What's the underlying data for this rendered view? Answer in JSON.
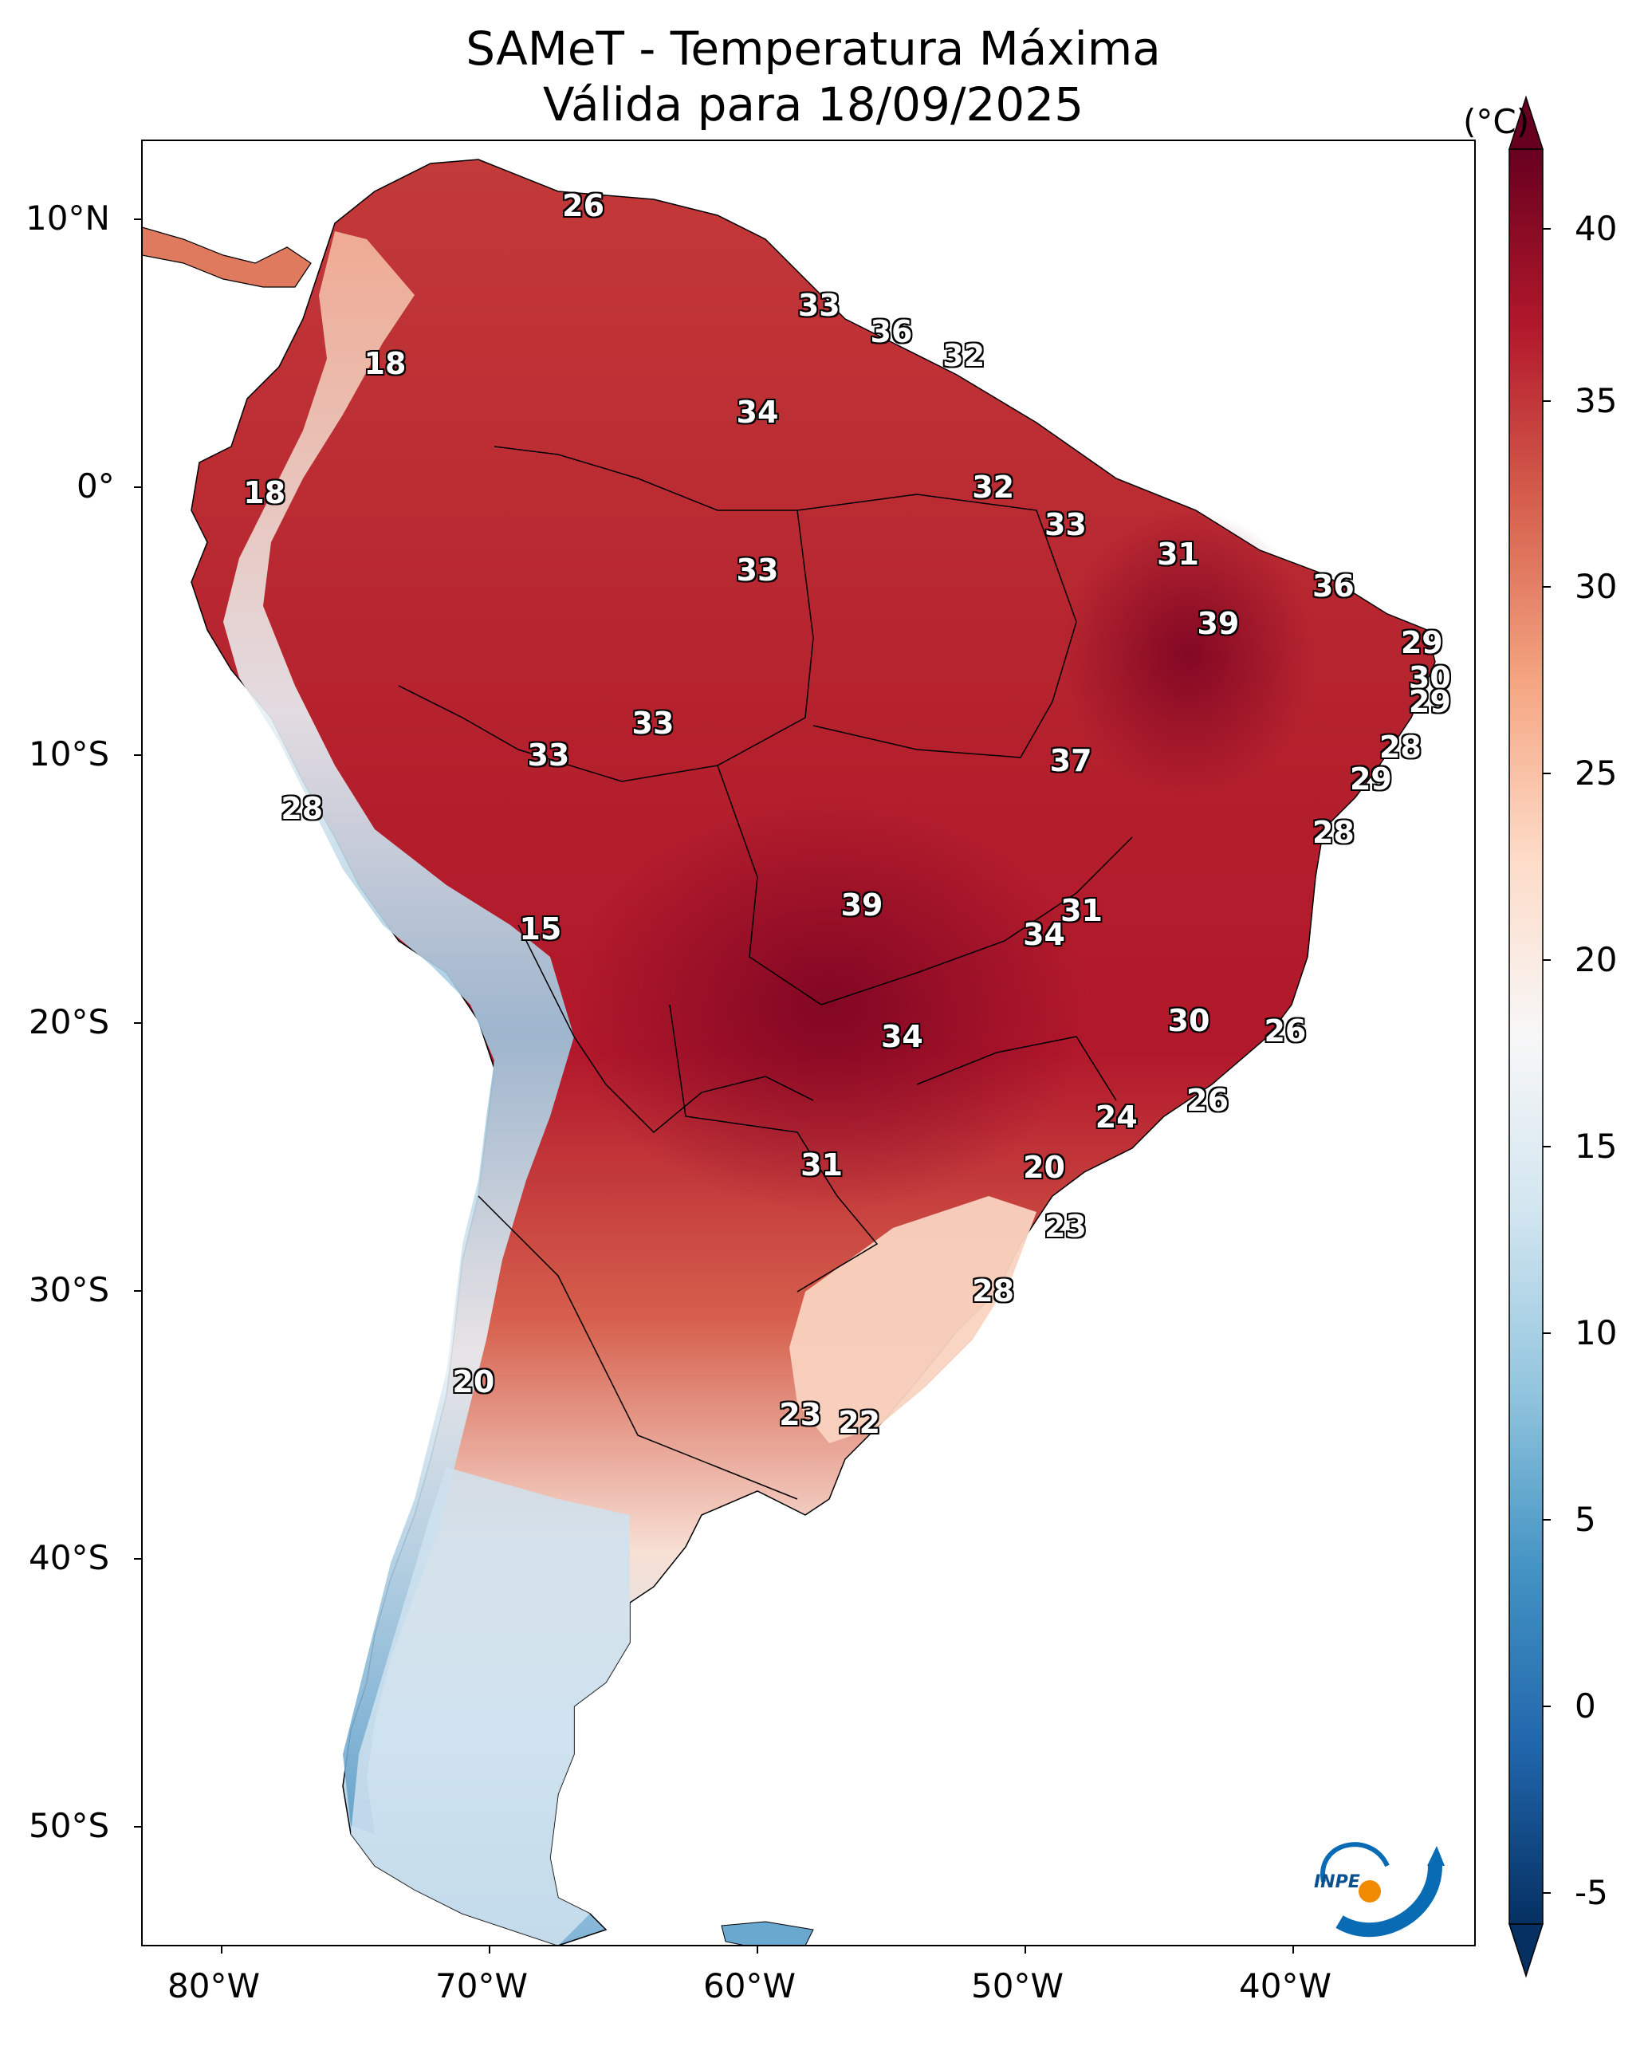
{
  "title": "SAMeT - Temperatura Máxima",
  "subtitle": "Válida para 18/09/2025",
  "colorbar": {
    "unit": "(°C)",
    "ticks": [
      "40",
      "35",
      "30",
      "25",
      "20",
      "15",
      "10",
      "5",
      "0",
      "-5"
    ],
    "range": [
      -5,
      40
    ],
    "colormap": "RdBu_r",
    "colors": [
      "#053061",
      "#2166ac",
      "#4393c3",
      "#92c5de",
      "#d1e5f0",
      "#f7f7f7",
      "#fddbc7",
      "#f4a582",
      "#d6604d",
      "#b2182b",
      "#67001f"
    ]
  },
  "axes": {
    "lat_labels": [
      "10°N",
      "0°",
      "10°S",
      "20°S",
      "30°S",
      "40°S",
      "50°S"
    ],
    "lon_labels": [
      "80°W",
      "70°W",
      "60°W",
      "50°W",
      "40°W"
    ]
  },
  "logo": "INPE",
  "chart_data": {
    "type": "heatmap",
    "title": "SAMeT - Temperatura Máxima",
    "subtitle": "Válida para 18/09/2025",
    "region": "South America",
    "lon_range": [
      -83,
      -33
    ],
    "lat_range": [
      -56,
      13
    ],
    "values_unit": "°C",
    "annotations": [
      {
        "lon": -66.5,
        "lat": 10.5,
        "value": "26"
      },
      {
        "lon": -57.7,
        "lat": 6.8,
        "value": "33"
      },
      {
        "lon": -55.0,
        "lat": 5.8,
        "value": "36"
      },
      {
        "lon": -52.3,
        "lat": 4.9,
        "value": "32"
      },
      {
        "lon": -73.9,
        "lat": 4.6,
        "value": "18"
      },
      {
        "lon": -60.0,
        "lat": 2.8,
        "value": "34"
      },
      {
        "lon": -78.4,
        "lat": -0.2,
        "value": "18"
      },
      {
        "lon": -51.2,
        "lat": 0.0,
        "value": "32"
      },
      {
        "lon": -48.5,
        "lat": -1.4,
        "value": "33"
      },
      {
        "lon": -44.3,
        "lat": -2.5,
        "value": "31"
      },
      {
        "lon": -60.0,
        "lat": -3.1,
        "value": "33"
      },
      {
        "lon": -38.5,
        "lat": -3.7,
        "value": "36"
      },
      {
        "lon": -42.8,
        "lat": -5.1,
        "value": "39"
      },
      {
        "lon": -35.2,
        "lat": -5.8,
        "value": "29"
      },
      {
        "lon": -34.9,
        "lat": -7.1,
        "value": "30"
      },
      {
        "lon": -34.9,
        "lat": -8.0,
        "value": "29"
      },
      {
        "lon": -63.9,
        "lat": -8.8,
        "value": "33"
      },
      {
        "lon": -36.0,
        "lat": -9.7,
        "value": "28"
      },
      {
        "lon": -67.8,
        "lat": -10.0,
        "value": "33"
      },
      {
        "lon": -48.3,
        "lat": -10.2,
        "value": "37"
      },
      {
        "lon": -37.1,
        "lat": -10.9,
        "value": "29"
      },
      {
        "lon": -77.0,
        "lat": -12.0,
        "value": "28"
      },
      {
        "lon": -38.5,
        "lat": -12.9,
        "value": "28"
      },
      {
        "lon": -56.1,
        "lat": -15.6,
        "value": "39"
      },
      {
        "lon": -47.9,
        "lat": -15.8,
        "value": "31"
      },
      {
        "lon": -49.3,
        "lat": -16.7,
        "value": "34"
      },
      {
        "lon": -68.1,
        "lat": -16.5,
        "value": "15"
      },
      {
        "lon": -43.9,
        "lat": -19.9,
        "value": "30"
      },
      {
        "lon": -40.3,
        "lat": -20.3,
        "value": "26"
      },
      {
        "lon": -54.6,
        "lat": -20.5,
        "value": "34"
      },
      {
        "lon": -43.2,
        "lat": -22.9,
        "value": "26"
      },
      {
        "lon": -46.6,
        "lat": -23.5,
        "value": "24"
      },
      {
        "lon": -49.3,
        "lat": -25.4,
        "value": "20"
      },
      {
        "lon": -57.6,
        "lat": -25.3,
        "value": "31"
      },
      {
        "lon": -48.5,
        "lat": -27.6,
        "value": "23"
      },
      {
        "lon": -51.2,
        "lat": -30.0,
        "value": "28"
      },
      {
        "lon": -70.6,
        "lat": -33.4,
        "value": "20"
      },
      {
        "lon": -58.4,
        "lat": -34.6,
        "value": "23"
      },
      {
        "lon": -56.2,
        "lat": -34.9,
        "value": "22"
      }
    ]
  }
}
